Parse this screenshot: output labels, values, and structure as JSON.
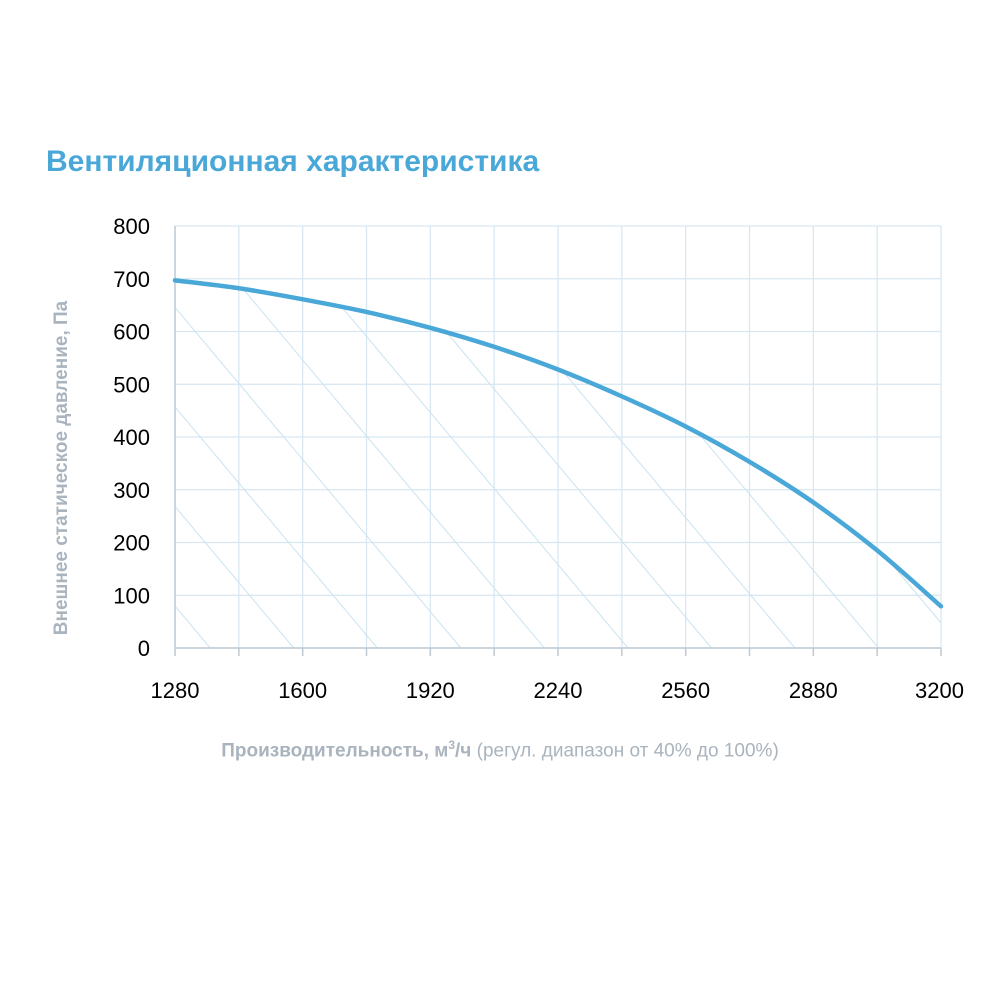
{
  "chart_data": {
    "type": "area",
    "title": "Вентиляционная характеристика",
    "ylabel": "Внешнее статическое давление, Па",
    "xlabel": {
      "main": "Производительность, м",
      "sup": "3",
      "unit_tail": "/ч",
      "note": " (регул. диапазон от 40% до 100%)"
    },
    "xlim": [
      1280,
      3200
    ],
    "ylim": [
      0,
      800
    ],
    "x_ticks": [
      "1280",
      "1600",
      "1920",
      "2240",
      "2560",
      "2880",
      "3200"
    ],
    "x_tick_values": [
      1280,
      1600,
      1920,
      2240,
      2560,
      2880,
      3200
    ],
    "y_ticks": [
      "0",
      "100",
      "200",
      "300",
      "400",
      "500",
      "600",
      "700",
      "800"
    ],
    "y_tick_values": [
      0,
      100,
      200,
      300,
      400,
      500,
      600,
      700,
      800
    ],
    "grid": true,
    "fill": "hatched",
    "series": [
      {
        "x": [
          1280,
          1440,
          1600,
          1760,
          1920,
          2080,
          2240,
          2400,
          2560,
          2720,
          2880,
          3040,
          3200
        ],
        "y": [
          697,
          682,
          661,
          637,
          607,
          571,
          528,
          477,
          420,
          353,
          276,
          185,
          79
        ]
      }
    ],
    "colors": {
      "line": "#4aa8d8",
      "hatch": "#c9e3f1",
      "grid": "#d6e7f1",
      "axis": "#bfc9d1",
      "title": "#4aa8d8",
      "axis_title": "#a9b4be"
    }
  }
}
